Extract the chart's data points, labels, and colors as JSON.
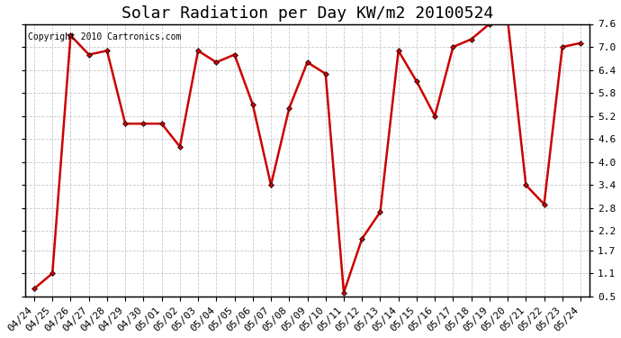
{
  "title": "Solar Radiation per Day KW/m2 20100524",
  "copyright": "Copyright 2010 Cartronics.com",
  "dates": [
    "04/24",
    "04/25",
    "04/26",
    "04/27",
    "04/28",
    "04/29",
    "04/30",
    "05/01",
    "05/02",
    "05/03",
    "05/04",
    "05/05",
    "05/06",
    "05/07",
    "05/08",
    "05/09",
    "05/10",
    "05/11",
    "05/12",
    "05/13",
    "05/14",
    "05/15",
    "05/16",
    "05/17",
    "05/18",
    "05/19",
    "05/20",
    "05/21",
    "05/22",
    "05/23",
    "05/24"
  ],
  "values": [
    0.7,
    1.1,
    7.3,
    6.8,
    6.9,
    5.0,
    5.0,
    5.0,
    4.4,
    6.9,
    6.6,
    6.8,
    5.5,
    3.4,
    5.4,
    6.6,
    6.3,
    0.6,
    2.0,
    2.7,
    6.9,
    6.1,
    5.2,
    7.0,
    7.2,
    7.6,
    7.7,
    3.4,
    2.9,
    7.0,
    7.1
  ],
  "line_color": "#cc0000",
  "marker": "D",
  "marker_size": 3,
  "ylim": [
    0.5,
    7.6
  ],
  "yticks": [
    0.5,
    1.1,
    1.7,
    2.2,
    2.8,
    3.4,
    4.0,
    4.6,
    5.2,
    5.8,
    6.4,
    7.0,
    7.6
  ],
  "ytick_labels": [
    "0.5",
    "1.1",
    "1.7",
    "2.2",
    "2.8",
    "3.4",
    "4.0",
    "4.6",
    "5.2",
    "5.8",
    "6.4",
    "7.0",
    "7.6"
  ],
  "background_color": "#ffffff",
  "grid_color": "#c8c8c8",
  "title_fontsize": 13,
  "copyright_fontsize": 7,
  "tick_fontsize": 8
}
